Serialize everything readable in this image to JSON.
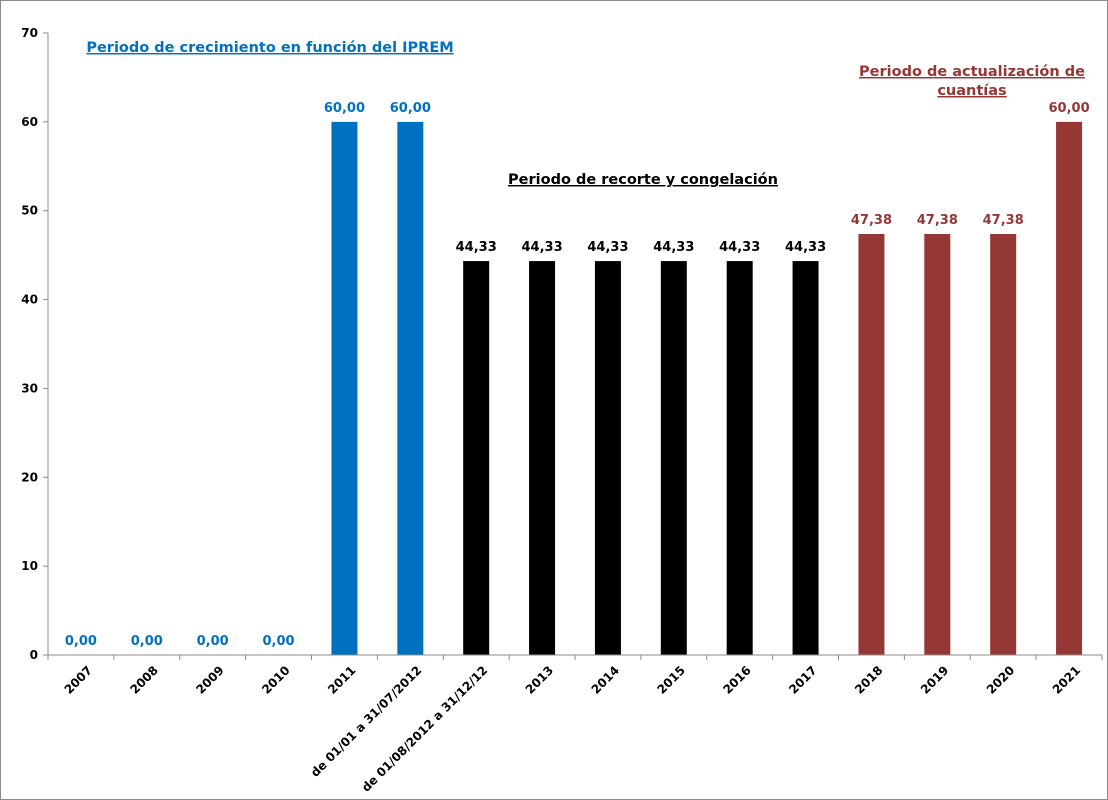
{
  "chart_data": {
    "type": "bar",
    "categories": [
      "2007",
      "2008",
      "2009",
      "2010",
      "2011",
      "de 01/01 a 31/07/2012",
      "de 01/08/2012 a 31/12/12",
      "2013",
      "2014",
      "2015",
      "2016",
      "2017",
      "2018",
      "2019",
      "2020",
      "2021"
    ],
    "values": [
      0,
      0,
      0,
      0,
      60,
      60,
      44.33,
      44.33,
      44.33,
      44.33,
      44.33,
      44.33,
      47.38,
      47.38,
      47.38,
      60
    ],
    "data_labels": [
      "0,00",
      "0,00",
      "0,00",
      "0,00",
      "60,00",
      "60,00",
      "44,33",
      "44,33",
      "44,33",
      "44,33",
      "44,33",
      "44,33",
      "47,38",
      "47,38",
      "47,38",
      "60,00"
    ],
    "bar_colors": [
      "#0070C0",
      "#0070C0",
      "#0070C0",
      "#0070C0",
      "#0070C0",
      "#0070C0",
      "#000000",
      "#000000",
      "#000000",
      "#000000",
      "#000000",
      "#000000",
      "#953735",
      "#953735",
      "#953735",
      "#953735"
    ],
    "ylim": [
      0,
      70
    ],
    "yticks": [
      "0",
      "10",
      "20",
      "30",
      "40",
      "50",
      "60",
      "70"
    ],
    "title": "",
    "xlabel": "",
    "ylabel": "",
    "grid": false,
    "legend": false,
    "annotations": [
      {
        "lines": [
          "Periodo de crecimiento en función del IPREM"
        ],
        "color": "#0070C0"
      },
      {
        "lines": [
          "Periodo de recorte y congelación"
        ],
        "color": "#000000"
      },
      {
        "lines": [
          "Periodo de actualización de",
          "cuantías"
        ],
        "color": "#953735"
      }
    ]
  }
}
